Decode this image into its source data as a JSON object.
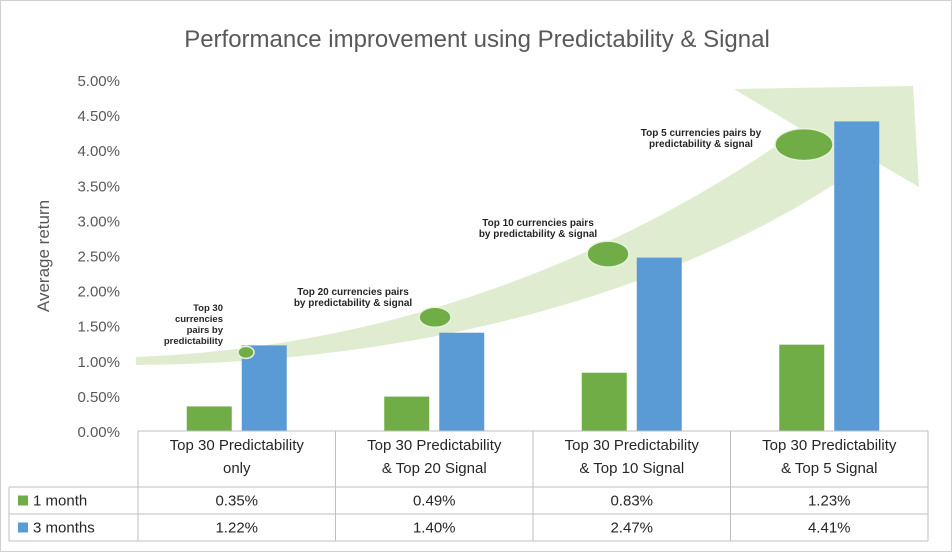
{
  "chart_data": {
    "type": "bar",
    "title": "Performance improvement using Predictability & Signal",
    "xlabel": "",
    "ylabel": "Average return",
    "ylim": [
      0,
      5
    ],
    "yticks": [
      "0.00%",
      "0.50%",
      "1.00%",
      "1.50%",
      "2.00%",
      "2.50%",
      "3.00%",
      "3.50%",
      "4.00%",
      "4.50%",
      "5.00%"
    ],
    "grid": false,
    "categories": [
      [
        "Top 30 Predictability",
        "only"
      ],
      [
        "Top 30 Predictability",
        "& Top 20 Signal"
      ],
      [
        "Top 30 Predictability",
        "& Top 10 Signal"
      ],
      [
        "Top 30 Predictability",
        "& Top 5 Signal"
      ]
    ],
    "series": [
      {
        "name": "1 month",
        "color": "#70ad47",
        "values": [
          0.35,
          0.49,
          0.83,
          1.23
        ],
        "labels": [
          "0.35%",
          "0.49%",
          "0.83%",
          "1.23%"
        ]
      },
      {
        "name": "3 months",
        "color": "#5b9bd5",
        "values": [
          1.22,
          1.4,
          2.47,
          4.41
        ],
        "labels": [
          "1.22%",
          "1.40%",
          "2.47%",
          "4.41%"
        ]
      }
    ],
    "annotations": [
      {
        "lines": [
          "Top 30",
          "currencies",
          "pairs by",
          "predictability"
        ],
        "y": 1.12
      },
      {
        "lines": [
          "Top 20 currencies pairs",
          "by predictability & signal"
        ],
        "y": 1.62
      },
      {
        "lines": [
          "Top 10 currencies pairs",
          "by predictability & signal"
        ],
        "y": 2.52
      },
      {
        "lines": [
          "Top 5 currencies pairs by",
          "predictability & signal"
        ],
        "y": 4.08
      }
    ],
    "arrow_color": "#dfeccf",
    "marker_color": "#70ad47",
    "legend": "data-table"
  }
}
